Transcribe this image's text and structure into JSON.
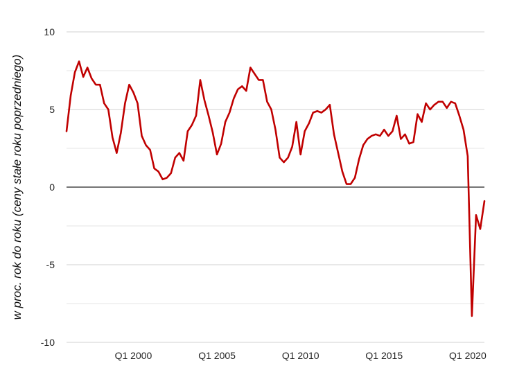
{
  "chart_data": {
    "type": "line",
    "title": "",
    "xlabel": "",
    "ylabel": "w proc. rok do roku (ceny stałe roku poprzedniego)",
    "ylim": [
      -10,
      10
    ],
    "yticks": [
      10,
      5,
      0,
      -5,
      -10
    ],
    "ytick_labels": [
      "10",
      "5",
      "0",
      "-5",
      "-10"
    ],
    "xtick_labels": [
      "Q1 2000",
      "Q1 2005",
      "Q1 2010",
      "Q1 2015",
      "Q1 2020"
    ],
    "xtick_index": [
      16,
      36,
      56,
      76,
      96
    ],
    "grid": "horizontal",
    "zero_line": true,
    "series": [
      {
        "color": "#c00000",
        "x": [
          "Q1 1996",
          "Q2 1996",
          "Q3 1996",
          "Q4 1996",
          "Q1 1997",
          "Q2 1997",
          "Q3 1997",
          "Q4 1997",
          "Q1 1998",
          "Q2 1998",
          "Q3 1998",
          "Q4 1998",
          "Q1 1999",
          "Q2 1999",
          "Q3 1999",
          "Q4 1999",
          "Q1 2000",
          "Q2 2000",
          "Q3 2000",
          "Q4 2000",
          "Q1 2001",
          "Q2 2001",
          "Q3 2001",
          "Q4 2001",
          "Q1 2002",
          "Q2 2002",
          "Q3 2002",
          "Q4 2002",
          "Q1 2003",
          "Q2 2003",
          "Q3 2003",
          "Q4 2003",
          "Q1 2004",
          "Q2 2004",
          "Q3 2004",
          "Q4 2004",
          "Q1 2005",
          "Q2 2005",
          "Q3 2005",
          "Q4 2005",
          "Q1 2006",
          "Q2 2006",
          "Q3 2006",
          "Q4 2006",
          "Q1 2007",
          "Q2 2007",
          "Q3 2007",
          "Q4 2007",
          "Q1 2008",
          "Q2 2008",
          "Q3 2008",
          "Q4 2008",
          "Q1 2009",
          "Q2 2009",
          "Q3 2009",
          "Q4 2009",
          "Q1 2010",
          "Q2 2010",
          "Q3 2010",
          "Q4 2010",
          "Q1 2011",
          "Q2 2011",
          "Q3 2011",
          "Q4 2011",
          "Q1 2012",
          "Q2 2012",
          "Q3 2012",
          "Q4 2012",
          "Q1 2013",
          "Q2 2013",
          "Q3 2013",
          "Q4 2013",
          "Q1 2014",
          "Q2 2014",
          "Q3 2014",
          "Q4 2014",
          "Q1 2015",
          "Q2 2015",
          "Q3 2015",
          "Q4 2015",
          "Q1 2016",
          "Q2 2016",
          "Q3 2016",
          "Q4 2016",
          "Q1 2017",
          "Q2 2017",
          "Q3 2017",
          "Q4 2017",
          "Q1 2018",
          "Q2 2018",
          "Q3 2018",
          "Q4 2018",
          "Q1 2019",
          "Q2 2019",
          "Q3 2019",
          "Q4 2019",
          "Q1 2020",
          "Q2 2020",
          "Q3 2020",
          "Q4 2020",
          "Q1 2021"
        ],
        "values": [
          3.6,
          5.9,
          7.4,
          8.1,
          7.1,
          7.7,
          7.0,
          6.6,
          6.6,
          5.4,
          5.0,
          3.2,
          2.2,
          3.5,
          5.4,
          6.6,
          6.1,
          5.4,
          3.3,
          2.7,
          2.4,
          1.2,
          1.0,
          0.5,
          0.6,
          0.9,
          1.9,
          2.2,
          1.7,
          3.6,
          4.0,
          4.6,
          6.9,
          5.6,
          4.6,
          3.5,
          2.1,
          2.8,
          4.2,
          4.8,
          5.7,
          6.3,
          6.5,
          6.2,
          7.7,
          7.3,
          6.9,
          6.9,
          5.5,
          5.0,
          3.7,
          1.9,
          1.6,
          1.9,
          2.6,
          4.2,
          2.1,
          3.6,
          4.1,
          4.8,
          4.9,
          4.8,
          5.0,
          5.3,
          3.4,
          2.2,
          1.0,
          0.2,
          0.2,
          0.6,
          1.8,
          2.7,
          3.1,
          3.3,
          3.4,
          3.3,
          3.7,
          3.3,
          3.6,
          4.6,
          3.1,
          3.4,
          2.8,
          2.9,
          4.7,
          4.2,
          5.4,
          5.0,
          5.3,
          5.5,
          5.5,
          5.1,
          5.5,
          5.4,
          4.6,
          3.7,
          2.0,
          -8.3,
          -1.8,
          -2.7,
          -0.9
        ]
      }
    ]
  }
}
